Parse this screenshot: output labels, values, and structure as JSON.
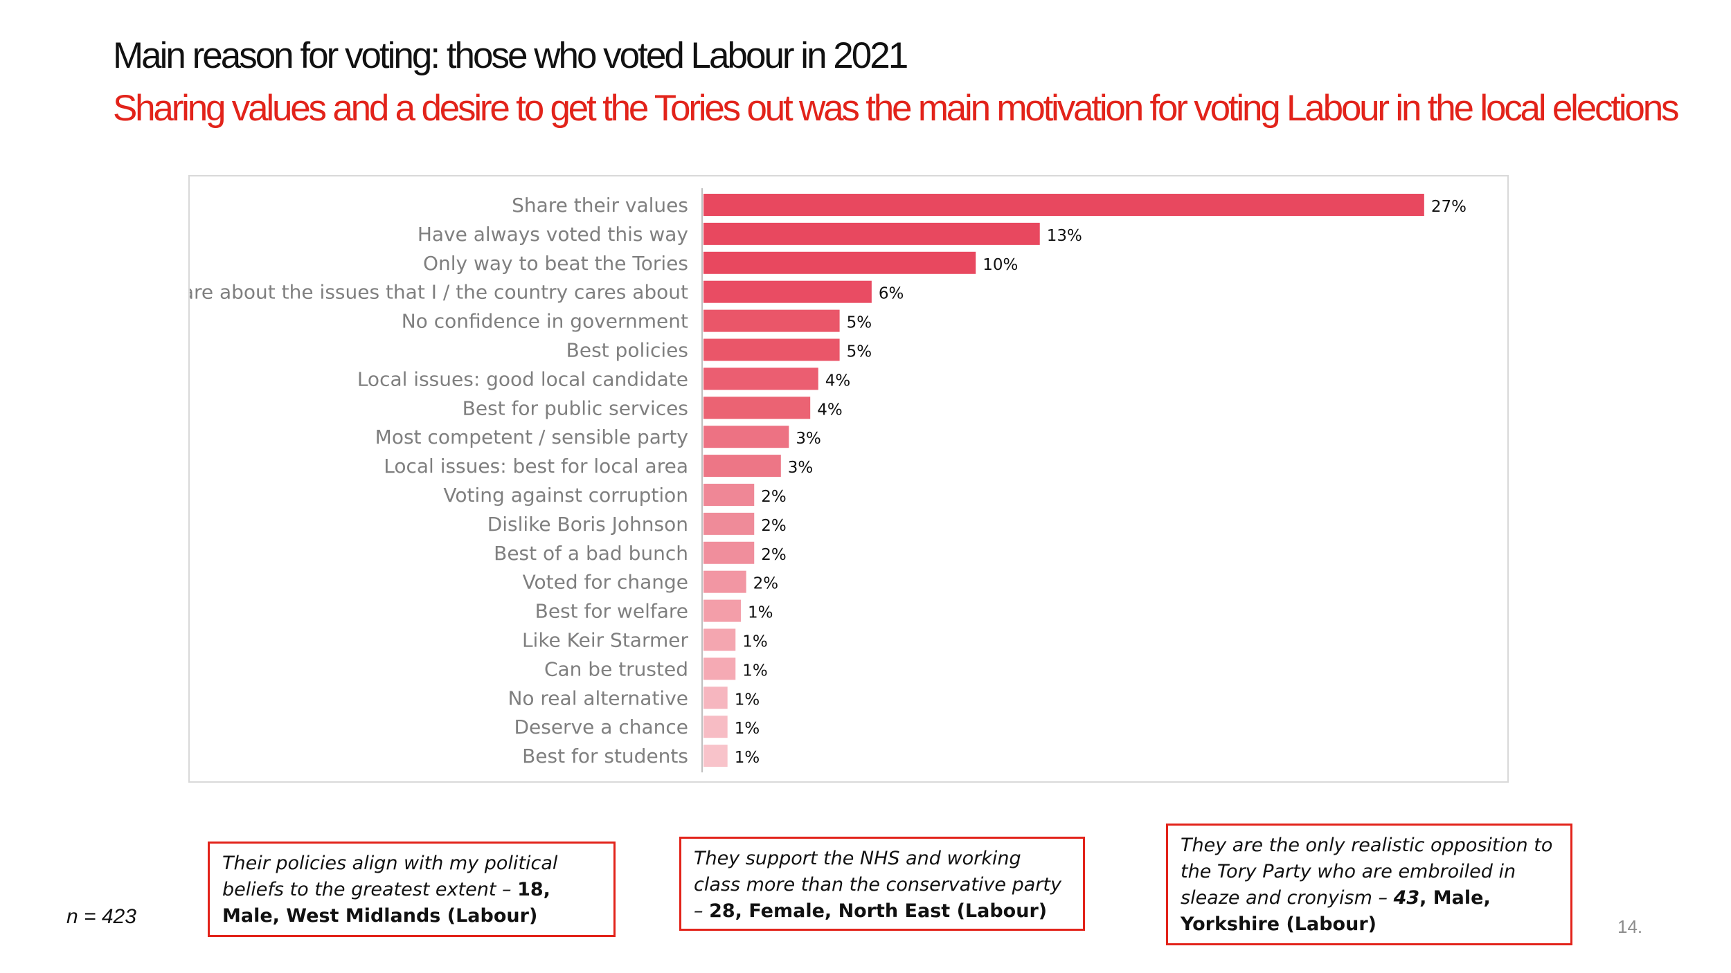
{
  "slide": {
    "title": "Main reason for voting: those who voted Labour in 2021",
    "subtitle": "Sharing values and a desire to get the Tories out was the main motivation for voting Labour in the local elections",
    "n_label": "n = 423",
    "page_number": "14."
  },
  "chart_data": {
    "type": "bar",
    "orientation": "horizontal",
    "title": "",
    "xlabel": "",
    "ylabel": "",
    "xlim": [
      0,
      30
    ],
    "grid": false,
    "value_suffix": "%",
    "categories": [
      "Share their values",
      "Have always voted this way",
      "Only way to beat the Tories",
      "Care about the issues that I / the country cares about",
      "No confidence in government",
      "Best policies",
      "Local issues: good local candidate",
      "Best for public services",
      "Most competent / sensible party",
      "Local issues: best for local area",
      "Voting against corruption",
      "Dislike Boris Johnson",
      "Best of a bad bunch",
      "Voted for change",
      "Best for welfare",
      "Like Keir Starmer",
      "Can be trusted",
      "No real alternative",
      "Deserve a chance",
      "Best for students"
    ],
    "values": [
      27,
      13,
      10,
      6,
      5,
      5,
      4,
      4,
      3,
      3,
      2,
      2,
      2,
      2,
      1,
      1,
      1,
      1,
      1,
      1
    ],
    "bar_lengths": [
      27,
      12.6,
      10.2,
      6.3,
      5.1,
      5.1,
      4.3,
      4.0,
      3.2,
      2.9,
      1.9,
      1.9,
      1.9,
      1.6,
      1.4,
      1.2,
      1.2,
      0.9,
      0.9,
      0.9
    ],
    "bar_colors": [
      "#e8485f",
      "#e8485f",
      "#e8485f",
      "#e94c63",
      "#ea5669",
      "#ea5669",
      "#eb5e71",
      "#eb6373",
      "#ed7283",
      "#ed7686",
      "#ef8796",
      "#ef8b99",
      "#f08e9c",
      "#f296a3",
      "#f39ea9",
      "#f4a6b0",
      "#f5aab4",
      "#f6b6bf",
      "#f7bcc4",
      "#f8c3ca"
    ]
  },
  "quotes": [
    {
      "text": "Their policies align with my political beliefs to the greatest extent – ",
      "attribution": "18, Male, West Midlands (Labour)"
    },
    {
      "text": "They support the NHS and working class more than the conservative party – ",
      "attribution": "28, Female, North East (Labour)"
    },
    {
      "text": "They are the only realistic opposition to the Tory Party who are embroiled in sleaze and cronyism – ",
      "attribution_italic": "43",
      "attribution": ", Male, Yorkshire (Labour)"
    }
  ],
  "colors": {
    "accent_red": "#e2231a",
    "axis_label": "#7f7f7f",
    "axis_line": "#bfbfbf"
  }
}
